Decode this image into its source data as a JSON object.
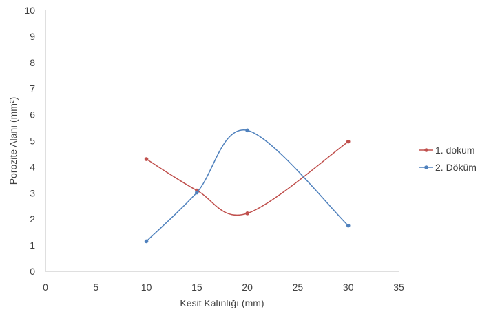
{
  "chart_data": {
    "type": "scatter",
    "title": "",
    "xlabel": "Kesit Kalınlığı (mm)",
    "ylabel": "Porozite Alanı (mm²)",
    "xlim": [
      0,
      35
    ],
    "ylim": [
      0,
      10
    ],
    "xticks": [
      0,
      5,
      10,
      15,
      20,
      25,
      30,
      35
    ],
    "yticks": [
      0,
      1,
      2,
      3,
      4,
      5,
      6,
      7,
      8,
      9,
      10
    ],
    "grid": false,
    "smooth_lines": true,
    "legend_position": "right",
    "series": [
      {
        "name": "1. dokum",
        "color": "#c0504d",
        "points": [
          {
            "x": 10,
            "y": 4.3
          },
          {
            "x": 15,
            "y": 3.1
          },
          {
            "x": 20,
            "y": 2.22
          },
          {
            "x": 30,
            "y": 4.97
          }
        ]
      },
      {
        "name": "2. Döküm",
        "color": "#4f81bd",
        "points": [
          {
            "x": 10,
            "y": 1.15
          },
          {
            "x": 15,
            "y": 3.02
          },
          {
            "x": 20,
            "y": 5.4
          },
          {
            "x": 30,
            "y": 1.75
          }
        ]
      }
    ]
  }
}
